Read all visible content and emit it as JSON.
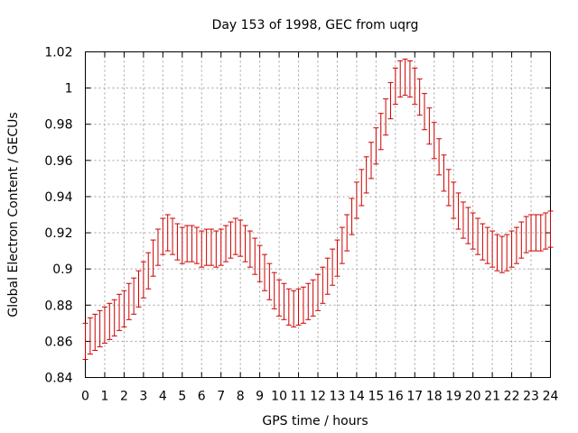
{
  "chart_data": {
    "type": "scatter",
    "title": "Day 153 of 1998, GEC from uqrg",
    "xlabel": "GPS time / hours",
    "ylabel": "Global Electron Content / GECUs",
    "xlim": [
      0,
      24
    ],
    "ylim": [
      0.84,
      1.02
    ],
    "x_ticks": [
      0,
      1,
      2,
      3,
      4,
      5,
      6,
      7,
      8,
      9,
      10,
      11,
      12,
      13,
      14,
      15,
      16,
      17,
      18,
      19,
      20,
      21,
      22,
      23,
      24
    ],
    "y_ticks": [
      0.84,
      0.86,
      0.88,
      0.9,
      0.92,
      0.94,
      0.96,
      0.98,
      1,
      1.02
    ],
    "x_tick_labels": [
      "0",
      "1",
      "2",
      "3",
      "4",
      "5",
      "6",
      "7",
      "8",
      "9",
      "10",
      "11",
      "12",
      "13",
      "14",
      "15",
      "16",
      "17",
      "18",
      "19",
      "20",
      "21",
      "22",
      "23",
      "24"
    ],
    "y_tick_labels": [
      "0.84",
      "0.86",
      "0.88",
      "0.9",
      "0.92",
      "0.94",
      "0.96",
      "0.98",
      "1",
      "1.02"
    ],
    "grid": true,
    "series_color": "#cc0000",
    "error_bar": 0.01,
    "series": [
      {
        "name": "GEC",
        "x": [
          0,
          0.25,
          0.5,
          0.75,
          1,
          1.25,
          1.5,
          1.75,
          2,
          2.25,
          2.5,
          2.75,
          3,
          3.25,
          3.5,
          3.75,
          4,
          4.25,
          4.5,
          4.75,
          5,
          5.25,
          5.5,
          5.75,
          6,
          6.25,
          6.5,
          6.75,
          7,
          7.25,
          7.5,
          7.75,
          8,
          8.25,
          8.5,
          8.75,
          9,
          9.25,
          9.5,
          9.75,
          10,
          10.25,
          10.5,
          10.75,
          11,
          11.25,
          11.5,
          11.75,
          12,
          12.25,
          12.5,
          12.75,
          13,
          13.25,
          13.5,
          13.75,
          14,
          14.25,
          14.5,
          14.75,
          15,
          15.25,
          15.5,
          15.75,
          16,
          16.25,
          16.5,
          16.75,
          17,
          17.25,
          17.5,
          17.75,
          18,
          18.25,
          18.5,
          18.75,
          19,
          19.25,
          19.5,
          19.75,
          20,
          20.25,
          20.5,
          20.75,
          21,
          21.25,
          21.5,
          21.75,
          22,
          22.25,
          22.5,
          22.75,
          23,
          23.25,
          23.5,
          23.75,
          24
        ],
        "y": [
          0.86,
          0.863,
          0.865,
          0.867,
          0.869,
          0.871,
          0.873,
          0.876,
          0.878,
          0.882,
          0.885,
          0.889,
          0.894,
          0.899,
          0.906,
          0.912,
          0.918,
          0.92,
          0.918,
          0.915,
          0.913,
          0.914,
          0.914,
          0.913,
          0.911,
          0.912,
          0.912,
          0.911,
          0.912,
          0.914,
          0.916,
          0.918,
          0.917,
          0.914,
          0.911,
          0.907,
          0.903,
          0.898,
          0.893,
          0.888,
          0.884,
          0.882,
          0.879,
          0.878,
          0.879,
          0.88,
          0.882,
          0.884,
          0.887,
          0.891,
          0.896,
          0.901,
          0.906,
          0.913,
          0.92,
          0.929,
          0.938,
          0.945,
          0.952,
          0.96,
          0.968,
          0.976,
          0.984,
          0.993,
          1.001,
          1.005,
          1.006,
          1.005,
          1.001,
          0.995,
          0.987,
          0.979,
          0.971,
          0.962,
          0.953,
          0.945,
          0.938,
          0.932,
          0.927,
          0.924,
          0.921,
          0.918,
          0.915,
          0.913,
          0.911,
          0.909,
          0.908,
          0.909,
          0.911,
          0.913,
          0.916,
          0.919,
          0.92,
          0.92,
          0.92,
          0.921,
          0.922
        ]
      }
    ]
  }
}
